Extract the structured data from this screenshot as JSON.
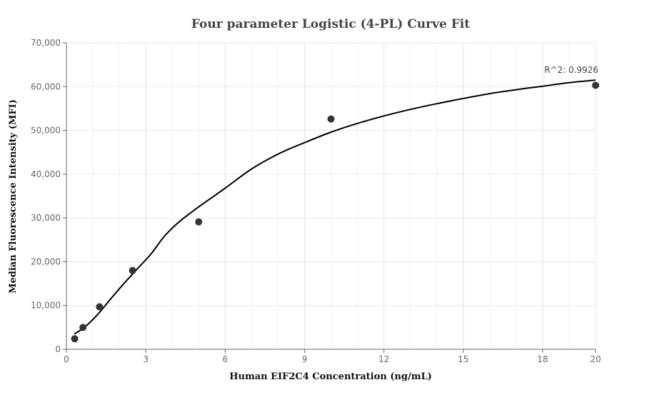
{
  "chart_data": {
    "type": "scatter",
    "title": "Four parameter Logistic (4-PL) Curve Fit",
    "xlabel": "Human EIF2C4 Concentration (ng/mL)",
    "ylabel": "Median Fluorescence Intensity (MFI)",
    "xlim": [
      0,
      20
    ],
    "ylim": [
      0,
      70000
    ],
    "x_ticks": [
      0,
      3,
      6,
      9,
      12,
      15,
      18,
      20
    ],
    "x_tick_labels": [
      "0",
      "3",
      "6",
      "9",
      "12",
      "15",
      "18",
      "20"
    ],
    "y_ticks": [
      0,
      10000,
      20000,
      30000,
      40000,
      50000,
      60000,
      70000
    ],
    "y_tick_labels": [
      "0",
      "10,000",
      "20,000",
      "30,000",
      "40,000",
      "50,000",
      "60,000",
      "70,000"
    ],
    "grid": true,
    "points": [
      {
        "x": 0.3125,
        "y": 2400
      },
      {
        "x": 0.625,
        "y": 5000
      },
      {
        "x": 1.25,
        "y": 9700
      },
      {
        "x": 2.5,
        "y": 18000
      },
      {
        "x": 5,
        "y": 29100
      },
      {
        "x": 10,
        "y": 52600
      },
      {
        "x": 20,
        "y": 60300
      }
    ],
    "fit_curve": [
      {
        "x": 0.3,
        "y": 3500
      },
      {
        "x": 0.7,
        "y": 5100
      },
      {
        "x": 1.2,
        "y": 8100
      },
      {
        "x": 1.7,
        "y": 11700
      },
      {
        "x": 2.2,
        "y": 15200
      },
      {
        "x": 2.7,
        "y": 18500
      },
      {
        "x": 3.2,
        "y": 21800
      },
      {
        "x": 3.7,
        "y": 25800
      },
      {
        "x": 4.2,
        "y": 28800
      },
      {
        "x": 4.7,
        "y": 31200
      },
      {
        "x": 5.2,
        "y": 33400
      },
      {
        "x": 6,
        "y": 36800
      },
      {
        "x": 7,
        "y": 41200
      },
      {
        "x": 8,
        "y": 44600
      },
      {
        "x": 9,
        "y": 47200
      },
      {
        "x": 10,
        "y": 49600
      },
      {
        "x": 11,
        "y": 51600
      },
      {
        "x": 12,
        "y": 53300
      },
      {
        "x": 13,
        "y": 54800
      },
      {
        "x": 14,
        "y": 56100
      },
      {
        "x": 15,
        "y": 57300
      },
      {
        "x": 16,
        "y": 58400
      },
      {
        "x": 17,
        "y": 59300
      },
      {
        "x": 18,
        "y": 60100
      },
      {
        "x": 19,
        "y": 60900
      },
      {
        "x": 20,
        "y": 61500
      }
    ],
    "annotations": [
      {
        "text": "R^2: 0.9926",
        "x": 20,
        "y": 61500
      }
    ],
    "colors": {
      "point": "#333333",
      "curve": "#000000",
      "grid": "#e6e6e6",
      "axis": "#666666"
    }
  }
}
